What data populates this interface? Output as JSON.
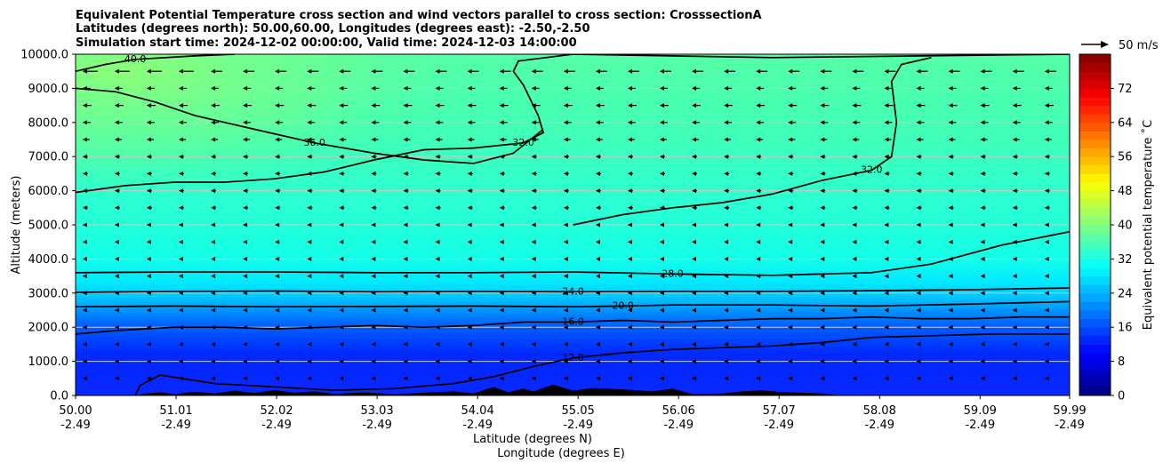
{
  "chart_data": {
    "type": "heatmap",
    "title_lines": [
      "Equivalent Potential Temperature cross section and wind vectors parallel to cross section: CrosssectionA",
      "Latitudes (degrees north): 50.00,60.00, Longitudes (degrees east): -2.50,-2.50",
      "Simulation start time: 2024-12-02 00:00:00, Valid time: 2024-12-03 14:00:00"
    ],
    "ylabel": "Altitude (meters)",
    "xlabel_lat": "Latitude (degrees N)",
    "xlabel_lon": "Longitude (degrees E)",
    "ylim": [
      0,
      10000
    ],
    "y_ticks": [
      "0.0",
      "1000.0",
      "2000.0",
      "3000.0",
      "4000.0",
      "5000.0",
      "6000.0",
      "7000.0",
      "8000.0",
      "9000.0",
      "10000.0"
    ],
    "y_tick_values": [
      0,
      1000,
      2000,
      3000,
      4000,
      5000,
      6000,
      7000,
      8000,
      9000,
      10000
    ],
    "xlim": [
      50.0,
      59.99
    ],
    "x_tick_values": [
      50.0,
      51.01,
      52.02,
      53.03,
      54.04,
      55.05,
      56.06,
      57.07,
      58.08,
      59.09,
      59.99
    ],
    "x_tick_lat": [
      "50.00",
      "51.01",
      "52.02",
      "53.03",
      "54.04",
      "55.05",
      "56.06",
      "57.07",
      "58.08",
      "59.09",
      "59.99"
    ],
    "x_tick_lon": [
      "-2.49",
      "-2.49",
      "-2.49",
      "-2.49",
      "-2.49",
      "-2.49",
      "-2.49",
      "-2.49",
      "-2.49",
      "-2.49",
      "-2.49"
    ],
    "grid": "horizontal",
    "colorbar": {
      "label": "Equivalent potential temperature ˚C",
      "range": [
        0,
        80
      ],
      "ticks": [
        "0",
        "8",
        "16",
        "24",
        "32",
        "40",
        "48",
        "56",
        "64",
        "72"
      ],
      "tick_values": [
        0,
        8,
        16,
        24,
        32,
        40,
        48,
        56,
        64,
        72
      ]
    },
    "quiver_key": "50 m/s",
    "contours": [
      {
        "level": 12,
        "label": "12.0",
        "points": [
          [
            50.6,
            0
          ],
          [
            50.65,
            300
          ],
          [
            50.85,
            600
          ],
          [
            51.4,
            350
          ],
          [
            52.0,
            250
          ],
          [
            52.6,
            150
          ],
          [
            53.2,
            200
          ],
          [
            53.8,
            350
          ],
          [
            54.2,
            550
          ],
          [
            54.6,
            850
          ],
          [
            55.0,
            1100
          ],
          [
            55.5,
            1250
          ],
          [
            56.0,
            1350
          ],
          [
            56.5,
            1400
          ],
          [
            57.0,
            1450
          ],
          [
            57.5,
            1550
          ],
          [
            58.0,
            1700
          ],
          [
            58.6,
            1750
          ],
          [
            59.2,
            1800
          ],
          [
            59.99,
            1800
          ]
        ]
      },
      {
        "level": 16,
        "label": "16.0",
        "points": [
          [
            50.0,
            1800
          ],
          [
            50.4,
            1900
          ],
          [
            51.0,
            2000
          ],
          [
            51.5,
            2000
          ],
          [
            52.0,
            1950
          ],
          [
            52.5,
            2000
          ],
          [
            53.0,
            2050
          ],
          [
            53.5,
            2000
          ],
          [
            54.0,
            2050
          ],
          [
            54.5,
            2150
          ],
          [
            55.0,
            2150
          ],
          [
            55.5,
            2200
          ],
          [
            56.0,
            2150
          ],
          [
            56.5,
            2200
          ],
          [
            57.0,
            2250
          ],
          [
            57.5,
            2250
          ],
          [
            58.0,
            2300
          ],
          [
            58.5,
            2250
          ],
          [
            59.0,
            2250
          ],
          [
            59.5,
            2300
          ],
          [
            59.99,
            2300
          ]
        ]
      },
      {
        "level": 20,
        "label": "20.0",
        "points": [
          [
            50.0,
            2600
          ],
          [
            51.0,
            2620
          ],
          [
            52.0,
            2600
          ],
          [
            53.0,
            2610
          ],
          [
            54.0,
            2620
          ],
          [
            55.0,
            2600
          ],
          [
            55.5,
            2620
          ],
          [
            56.0,
            2650
          ],
          [
            57.0,
            2650
          ],
          [
            58.0,
            2620
          ],
          [
            59.0,
            2680
          ],
          [
            59.99,
            2750
          ]
        ]
      },
      {
        "level": 24,
        "label": "24.0",
        "points": [
          [
            50.0,
            3020
          ],
          [
            51.0,
            3050
          ],
          [
            52.0,
            3060
          ],
          [
            53.0,
            3040
          ],
          [
            54.0,
            3050
          ],
          [
            55.0,
            3040
          ],
          [
            56.0,
            3050
          ],
          [
            57.0,
            3050
          ],
          [
            58.0,
            3070
          ],
          [
            59.0,
            3100
          ],
          [
            59.99,
            3150
          ]
        ]
      },
      {
        "level": 28,
        "label": "28.0",
        "points": [
          [
            50.0,
            3600
          ],
          [
            51.0,
            3620
          ],
          [
            52.0,
            3620
          ],
          [
            53.0,
            3600
          ],
          [
            54.0,
            3600
          ],
          [
            55.0,
            3620
          ],
          [
            56.0,
            3560
          ],
          [
            57.0,
            3520
          ],
          [
            58.0,
            3600
          ],
          [
            58.6,
            3850
          ],
          [
            59.3,
            4400
          ],
          [
            59.99,
            4800
          ]
        ]
      },
      {
        "level": 32,
        "label": "32.0",
        "points": [
          [
            50.0,
            5950
          ],
          [
            50.5,
            6150
          ],
          [
            51.0,
            6250
          ],
          [
            51.5,
            6250
          ],
          [
            52.0,
            6350
          ],
          [
            52.5,
            6550
          ],
          [
            53.0,
            6900
          ],
          [
            53.5,
            7200
          ],
          [
            54.0,
            7250
          ],
          [
            54.5,
            7400
          ],
          [
            54.7,
            7700
          ],
          [
            54.65,
            8200
          ],
          [
            54.5,
            9100
          ],
          [
            54.4,
            9500
          ],
          [
            54.45,
            9800
          ],
          [
            55.0,
            10000
          ],
          [
            57.0,
            9900
          ],
          [
            58.5,
            9950
          ],
          [
            59.99,
            10000
          ]
        ]
      },
      {
        "level": 32,
        "label": "32.0",
        "points": [
          [
            55.0,
            5000
          ],
          [
            55.5,
            5300
          ],
          [
            56.0,
            5500
          ],
          [
            56.5,
            5650
          ],
          [
            57.0,
            5900
          ],
          [
            57.5,
            6300
          ],
          [
            58.0,
            6600
          ],
          [
            58.2,
            7000
          ],
          [
            58.25,
            8000
          ],
          [
            58.2,
            9200
          ],
          [
            58.3,
            9700
          ],
          [
            58.6,
            9900
          ]
        ]
      },
      {
        "level": 36,
        "label": "36.0",
        "points": [
          [
            50.0,
            9000
          ],
          [
            50.4,
            8900
          ],
          [
            50.8,
            8600
          ],
          [
            51.2,
            8200
          ],
          [
            51.8,
            7800
          ],
          [
            52.4,
            7400
          ],
          [
            53.0,
            7100
          ],
          [
            53.5,
            6900
          ],
          [
            54.0,
            6800
          ],
          [
            54.4,
            7100
          ],
          [
            54.7,
            7800
          ]
        ]
      },
      {
        "level": 40,
        "label": "40.0",
        "points": [
          [
            50.0,
            9500
          ],
          [
            50.3,
            9700
          ],
          [
            50.6,
            9850
          ],
          [
            51.2,
            9950
          ],
          [
            51.6,
            10000
          ]
        ]
      }
    ],
    "wind_vectors_direction": "leftward, strongest above 7000 m"
  }
}
